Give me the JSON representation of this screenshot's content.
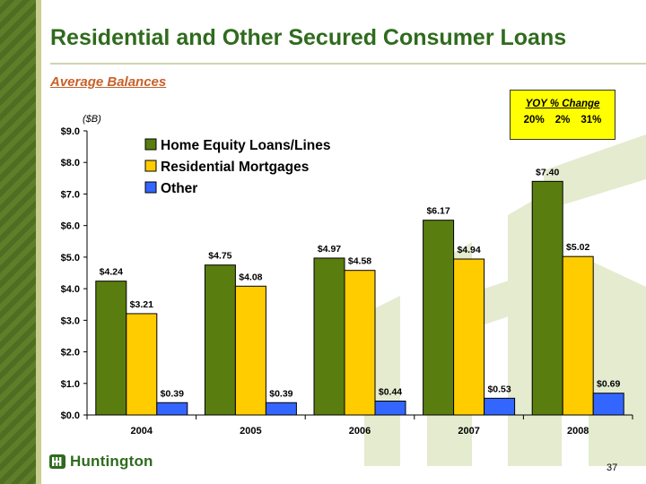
{
  "slide": {
    "title": "Residential and Other Secured Consumer Loans",
    "subtitle": "Average Balances",
    "page_number": "37",
    "logo_text": "Huntington"
  },
  "yoy_box": {
    "title": "YOY % Change",
    "values": [
      "20%",
      "2%",
      "31%"
    ]
  },
  "colors": {
    "home_equity": "#5a7d0f",
    "residential_mortgages": "#ffcc00",
    "other": "#3366ff",
    "title_green": "#2f6b1e",
    "subtitle_orange": "#c8612a",
    "yoy_box_fill": "#ffff00"
  },
  "chart_data": {
    "type": "bar",
    "unit_label": "($B)",
    "categories": [
      "2004",
      "2005",
      "2006",
      "2007",
      "2008"
    ],
    "series": [
      {
        "name": "Home Equity Loans/Lines",
        "values": [
          4.24,
          4.75,
          4.97,
          6.17,
          7.4
        ],
        "labels": [
          "$4.24",
          "$4.75",
          "$4.97",
          "$6.17",
          "$7.40"
        ]
      },
      {
        "name": "Residential Mortgages",
        "values": [
          3.21,
          4.08,
          4.58,
          4.94,
          5.02
        ],
        "labels": [
          "$3.21",
          "$4.08",
          "$4.58",
          "$4.94",
          "$5.02"
        ]
      },
      {
        "name": "Other",
        "values": [
          0.39,
          0.39,
          0.44,
          0.53,
          0.69
        ],
        "labels": [
          "$0.39",
          "$0.39",
          "$0.44",
          "$0.53",
          "$0.69"
        ]
      }
    ],
    "ylim": [
      0,
      9
    ],
    "yticks": [
      0,
      1,
      2,
      3,
      4,
      5,
      6,
      7,
      8,
      9
    ],
    "ytick_labels": [
      "$0.0",
      "$1.0",
      "$2.0",
      "$3.0",
      "$4.0",
      "$5.0",
      "$6.0",
      "$7.0",
      "$8.0",
      "$9.0"
    ],
    "legend_position": "top-left",
    "grid": false
  }
}
